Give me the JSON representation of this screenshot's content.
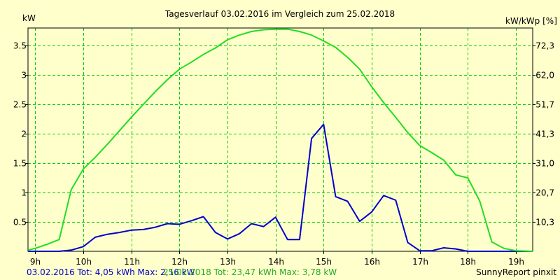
{
  "chart_data": {
    "type": "line",
    "title": "Tagesverlauf 03.02.2016 im Vergleich zum 25.02.2018",
    "ylabel_left": "kW",
    "ylabel_right": "kW/kWp [%]",
    "xlim": [
      8.85,
      19.35
    ],
    "ylim": [
      0,
      3.8
    ],
    "x_ticks": [
      9,
      10,
      11,
      12,
      13,
      14,
      15,
      16,
      17,
      18,
      19
    ],
    "x_tick_labels": [
      "9h",
      "10h",
      "11h",
      "12h",
      "13h",
      "14h",
      "15h",
      "16h",
      "17h",
      "18h",
      "19h"
    ],
    "y_ticks_left": [
      0.5,
      1,
      1.5,
      2,
      2.5,
      3,
      3.5
    ],
    "y_tick_labels_left": [
      "0.5",
      "1",
      "1.5",
      "2",
      "2.5",
      "3",
      "3.5"
    ],
    "y_ticks_right": [
      0.5,
      1,
      1.5,
      2,
      2.5,
      3,
      3.5
    ],
    "y_tick_labels_right": [
      "10,3",
      "20,7",
      "31,0",
      "41,3",
      "51,7",
      "62,0",
      "72,3"
    ],
    "grid": true,
    "legend_position": "bottom-left",
    "series": [
      {
        "name": "03.02.2016",
        "color": "#0000cc",
        "points": [
          [
            8.85,
            0
          ],
          [
            9.5,
            0
          ],
          [
            9.75,
            0.02
          ],
          [
            10,
            0.08
          ],
          [
            10.25,
            0.24
          ],
          [
            10.5,
            0.29
          ],
          [
            10.75,
            0.32
          ],
          [
            11,
            0.36
          ],
          [
            11.25,
            0.37
          ],
          [
            11.5,
            0.41
          ],
          [
            11.75,
            0.47
          ],
          [
            12,
            0.46
          ],
          [
            12.25,
            0.52
          ],
          [
            12.5,
            0.59
          ],
          [
            12.75,
            0.32
          ],
          [
            13,
            0.21
          ],
          [
            13.25,
            0.3
          ],
          [
            13.5,
            0.47
          ],
          [
            13.75,
            0.42
          ],
          [
            14,
            0.58
          ],
          [
            14.25,
            0.2
          ],
          [
            14.5,
            0.2
          ],
          [
            14.75,
            1.92
          ],
          [
            15,
            2.16
          ],
          [
            15.25,
            0.93
          ],
          [
            15.5,
            0.85
          ],
          [
            15.75,
            0.51
          ],
          [
            16,
            0.67
          ],
          [
            16.25,
            0.95
          ],
          [
            16.5,
            0.87
          ],
          [
            16.75,
            0.15
          ],
          [
            17,
            0.01
          ],
          [
            17.25,
            0.01
          ],
          [
            17.5,
            0.06
          ],
          [
            17.75,
            0.04
          ],
          [
            18,
            0
          ],
          [
            18.5,
            0
          ],
          [
            19.35,
            0
          ]
        ]
      },
      {
        "name": "25.02.2018",
        "color": "#22dd22",
        "points": [
          [
            8.85,
            0.02
          ],
          [
            9,
            0.05
          ],
          [
            9.25,
            0.12
          ],
          [
            9.5,
            0.2
          ],
          [
            9.75,
            1.05
          ],
          [
            10,
            1.4
          ],
          [
            10.25,
            1.6
          ],
          [
            10.5,
            1.82
          ],
          [
            10.75,
            2.05
          ],
          [
            11,
            2.28
          ],
          [
            11.25,
            2.5
          ],
          [
            11.5,
            2.72
          ],
          [
            11.75,
            2.92
          ],
          [
            12,
            3.1
          ],
          [
            12.25,
            3.22
          ],
          [
            12.5,
            3.35
          ],
          [
            12.75,
            3.46
          ],
          [
            13,
            3.6
          ],
          [
            13.25,
            3.68
          ],
          [
            13.5,
            3.74
          ],
          [
            13.75,
            3.77
          ],
          [
            14,
            3.78
          ],
          [
            14.25,
            3.78
          ],
          [
            14.5,
            3.74
          ],
          [
            14.75,
            3.68
          ],
          [
            15,
            3.58
          ],
          [
            15.25,
            3.47
          ],
          [
            15.5,
            3.3
          ],
          [
            15.75,
            3.1
          ],
          [
            16,
            2.8
          ],
          [
            16.25,
            2.53
          ],
          [
            16.5,
            2.28
          ],
          [
            16.75,
            2.02
          ],
          [
            17,
            1.8
          ],
          [
            17.25,
            1.68
          ],
          [
            17.5,
            1.55
          ],
          [
            17.75,
            1.3
          ],
          [
            18,
            1.25
          ],
          [
            18.25,
            0.85
          ],
          [
            18.5,
            0.16
          ],
          [
            18.75,
            0.05
          ],
          [
            19,
            0.01
          ],
          [
            19.35,
            0
          ]
        ]
      }
    ]
  },
  "footer": {
    "legend_a": "03.02.2016 Tot: 4,05 kWh Max: 2,16 kW",
    "legend_b": "25.02.2018 Tot: 23,47 kWh Max: 3,78 kW",
    "brand": "SunnyReport pinxit"
  }
}
